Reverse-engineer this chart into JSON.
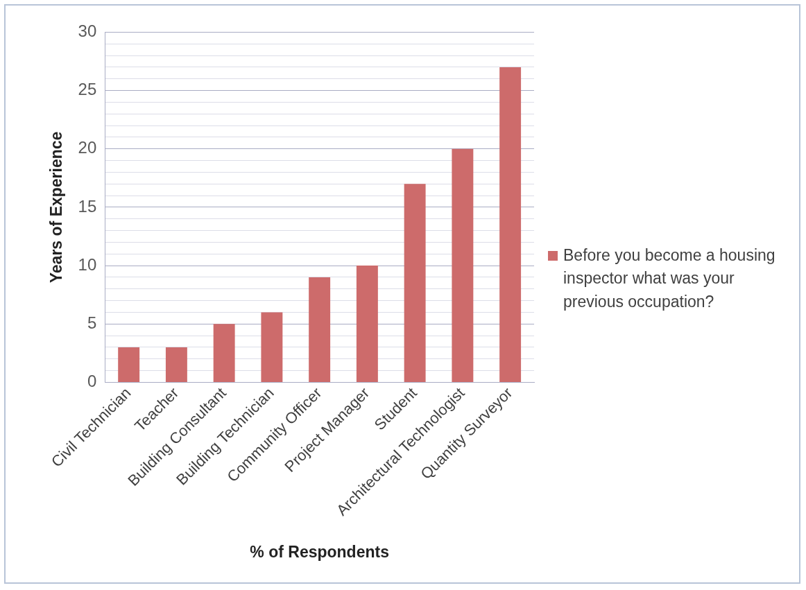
{
  "chart_data": {
    "type": "bar",
    "xlabel": "% of Respondents",
    "ylabel": "Years of Experience",
    "categories": [
      "Civil Technician",
      "Teacher",
      "Building Consultant",
      "Building Technician",
      "Community Officer",
      "Project Manager",
      "Student",
      "Architectural Technologist",
      "Quantity Surveyor"
    ],
    "series": [
      {
        "name": "Before you become a housing inspector what was your previous occupation?",
        "color": "#cd6b6b",
        "values": [
          3,
          3,
          5,
          6,
          9,
          10,
          17,
          20,
          27
        ]
      }
    ],
    "ylim": [
      0,
      30
    ],
    "yticks": [
      0,
      {
        "value": 1,
        "label": null
      },
      {
        "value": 2,
        "label": null
      },
      {
        "value": 3,
        "label": null
      },
      {
        "value": 4,
        "label": null
      },
      5,
      {
        "value": 6,
        "label": null
      },
      {
        "value": 7,
        "label": null
      },
      {
        "value": 8,
        "label": null
      },
      {
        "value": 9,
        "label": null
      },
      10,
      {
        "value": 11,
        "label": null
      },
      {
        "value": 12,
        "label": null
      },
      {
        "value": 13,
        "label": null
      },
      {
        "value": 14,
        "label": null
      },
      15,
      {
        "value": 16,
        "label": null
      },
      {
        "value": 17,
        "label": null
      },
      {
        "value": 18,
        "label": null
      },
      {
        "value": 19,
        "label": null
      },
      20,
      {
        "value": 21,
        "label": null
      },
      {
        "value": 22,
        "label": null
      },
      {
        "value": 23,
        "label": null
      },
      {
        "value": 24,
        "label": null
      },
      25,
      {
        "value": 26,
        "label": null
      },
      {
        "value": 27,
        "label": null
      },
      {
        "value": 28,
        "label": null
      },
      {
        "value": 29,
        "label": null
      },
      30
    ],
    "grid": "y",
    "legend": "right"
  }
}
